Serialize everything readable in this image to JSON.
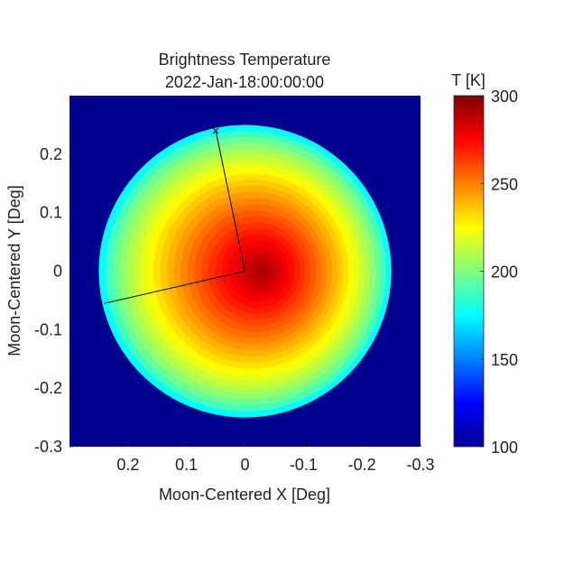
{
  "chart_data": {
    "type": "heatmap",
    "title": "Brightness Temperature",
    "subtitle": "2022-Jan-18:00:00:00",
    "xlabel": "Moon-Centered X [Deg]",
    "ylabel": "Moon-Centered Y [Deg]",
    "xlim": [
      0.3,
      -0.3
    ],
    "ylim": [
      -0.3,
      0.3
    ],
    "x_reversed": true,
    "xticks": [
      0.2,
      0.1,
      0,
      -0.1,
      -0.2,
      -0.3
    ],
    "xtick_labels": [
      "0.2",
      "0.1",
      "0",
      "-0.1",
      "-0.2",
      "-0.3"
    ],
    "yticks": [
      0.2,
      0.1,
      0,
      -0.1,
      -0.2,
      -0.3
    ],
    "ytick_labels": [
      "0.2",
      "0.1",
      "0",
      "-0.1",
      "-0.2",
      "-0.3"
    ],
    "colormap": "jet",
    "colorbar": {
      "label": "T [K]",
      "range": [
        100,
        300
      ],
      "ticks": [
        100,
        150,
        200,
        250,
        300
      ],
      "tick_labels": [
        "100",
        "150",
        "200",
        "250",
        "300"
      ]
    },
    "background_value": 100,
    "disk": {
      "center": [
        0,
        0
      ],
      "radius_deg": 0.25,
      "peak_value": 295,
      "peak_location": [
        -0.03,
        0.0
      ],
      "limb_value": 175
    },
    "overlay": {
      "type": "polyline",
      "marker": "x",
      "points": [
        [
          0.05,
          0.24
        ],
        [
          0,
          0
        ],
        [
          0.24,
          -0.055
        ]
      ]
    }
  }
}
